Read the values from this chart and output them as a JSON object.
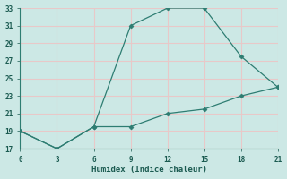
{
  "line1_x": [
    0,
    3,
    6,
    9,
    12,
    15,
    18,
    21
  ],
  "line1_y": [
    19,
    17,
    19.5,
    31,
    33,
    33,
    27.5,
    24
  ],
  "line2_x": [
    0,
    3,
    6,
    9,
    12,
    15,
    18,
    21
  ],
  "line2_y": [
    19,
    17,
    19.5,
    19.5,
    21,
    21.5,
    23,
    24
  ],
  "line_color": "#2e7d72",
  "bg_color": "#cce8e5",
  "grid_color": "#e8c8c8",
  "xlabel": "Humidex (Indice chaleur)",
  "xlim": [
    0,
    21
  ],
  "ylim": [
    17,
    33
  ],
  "xticks": [
    0,
    3,
    6,
    9,
    12,
    15,
    18,
    21
  ],
  "yticks": [
    17,
    19,
    21,
    23,
    25,
    27,
    29,
    31,
    33
  ],
  "markersize": 2.5,
  "linewidth": 0.9,
  "font_family": "monospace",
  "tick_fontsize": 5.5,
  "xlabel_fontsize": 6.5
}
